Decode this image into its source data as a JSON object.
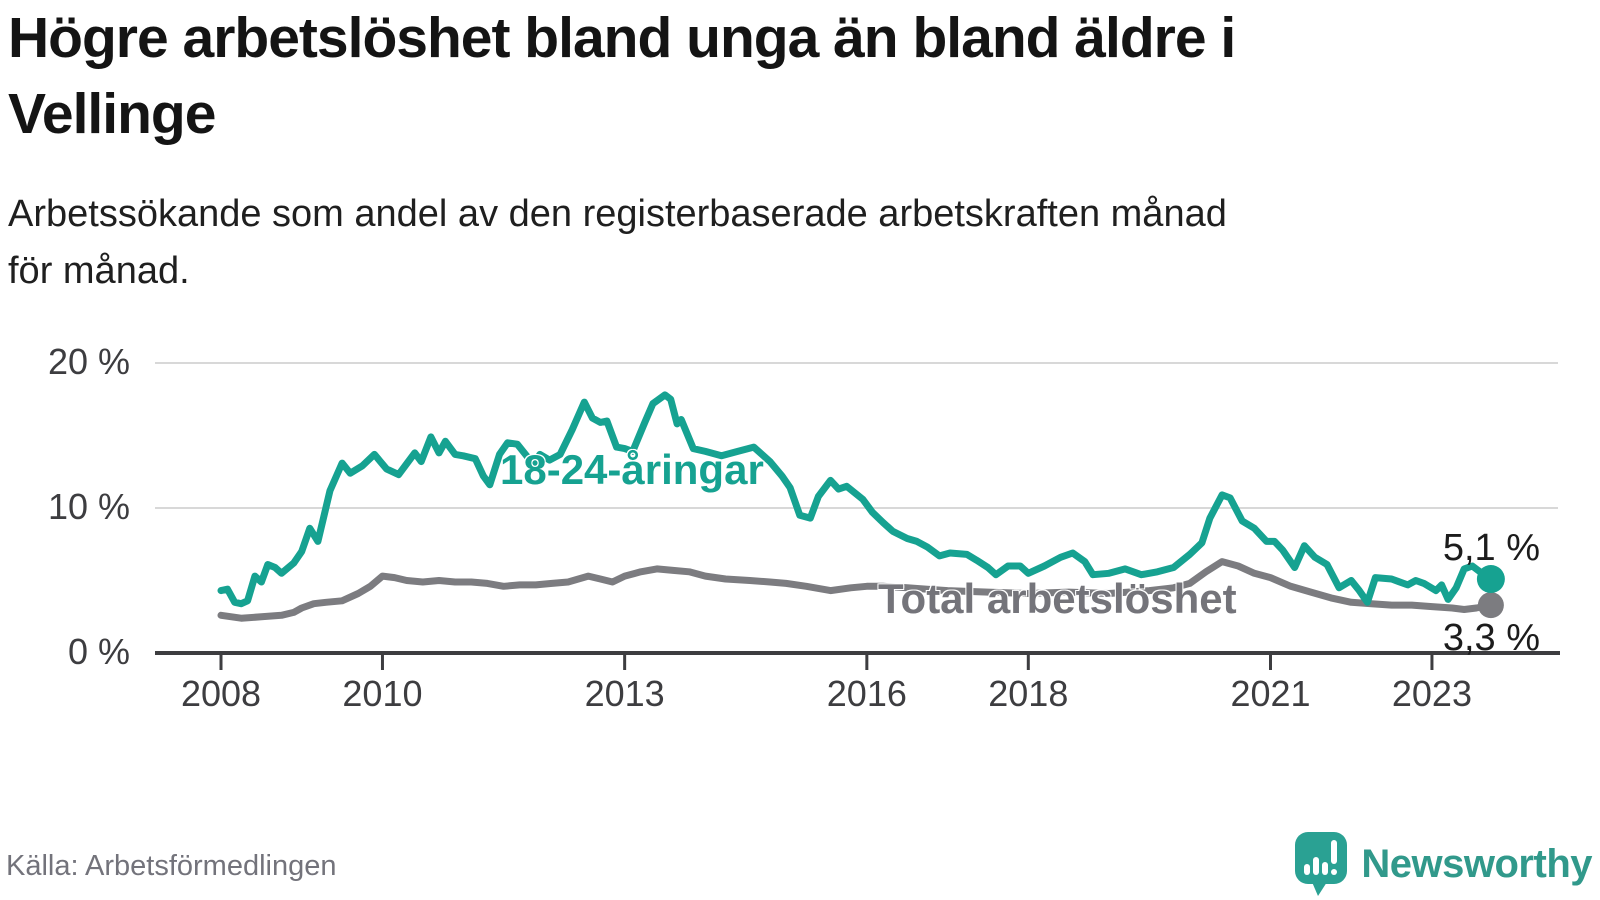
{
  "header": {
    "title_lines": [
      "Högre arbetslöshet bland unga än bland äldre i",
      "Vellinge"
    ],
    "subtitle_lines": [
      "Arbetssökande som andel av den registerbaserade arbetskraften månad",
      "för månad."
    ]
  },
  "footer": {
    "source": "Källa: Arbetsförmedlingen",
    "brand": "Newsworthy",
    "brand_icon": "newsworthy-speech-bubble-bar-chart-icon"
  },
  "colors": {
    "youth": "#16a291",
    "total": "#7c7c80",
    "grid": "#d8d8d8",
    "axis": "#3d3d40",
    "tick_text": "#3d3d40",
    "value_text": "#1c1c1c",
    "brand": "#31998b"
  },
  "chart_data": {
    "type": "line",
    "unit": "%",
    "legend": "inline-labels",
    "x_axis": {
      "ticks": [
        2008,
        2010,
        2013,
        2016,
        2018,
        2021,
        2023
      ],
      "domain": [
        2008.0,
        2023.75
      ]
    },
    "y_axis": {
      "min": 0,
      "max": 20,
      "grid": true,
      "ticks": [
        {
          "value": 20,
          "label": "20 %"
        },
        {
          "value": 10,
          "label": "10 %"
        },
        {
          "value": 0,
          "label": "0 %"
        }
      ]
    },
    "series": [
      {
        "id": "youth",
        "name": "18-24-åringar",
        "color": "#16a291",
        "end_label": "5,1 %",
        "end_value": 5.1,
        "dot_radius": 14,
        "points": [
          [
            2008.0,
            4.3
          ],
          [
            2008.08,
            4.4
          ],
          [
            2008.17,
            3.5
          ],
          [
            2008.25,
            3.4
          ],
          [
            2008.33,
            3.6
          ],
          [
            2008.42,
            5.3
          ],
          [
            2008.5,
            4.9
          ],
          [
            2008.58,
            6.1
          ],
          [
            2008.67,
            5.9
          ],
          [
            2008.75,
            5.5
          ],
          [
            2008.9,
            6.2
          ],
          [
            2009.0,
            7.0
          ],
          [
            2009.1,
            8.6
          ],
          [
            2009.2,
            7.7
          ],
          [
            2009.35,
            11.2
          ],
          [
            2009.5,
            13.1
          ],
          [
            2009.6,
            12.4
          ],
          [
            2009.75,
            12.9
          ],
          [
            2009.9,
            13.7
          ],
          [
            2010.05,
            12.7
          ],
          [
            2010.2,
            12.3
          ],
          [
            2010.4,
            13.8
          ],
          [
            2010.48,
            13.2
          ],
          [
            2010.6,
            14.9
          ],
          [
            2010.7,
            13.8
          ],
          [
            2010.78,
            14.6
          ],
          [
            2010.9,
            13.7
          ],
          [
            2011.0,
            13.6
          ],
          [
            2011.15,
            13.4
          ],
          [
            2011.25,
            12.2
          ],
          [
            2011.33,
            11.6
          ],
          [
            2011.45,
            13.7
          ],
          [
            2011.55,
            14.5
          ],
          [
            2011.67,
            14.4
          ],
          [
            2011.8,
            13.5
          ],
          [
            2011.87,
            12.9
          ],
          [
            2011.95,
            13.7
          ],
          [
            2012.07,
            13.3
          ],
          [
            2012.2,
            13.7
          ],
          [
            2012.35,
            15.4
          ],
          [
            2012.5,
            17.3
          ],
          [
            2012.6,
            16.2
          ],
          [
            2012.7,
            15.9
          ],
          [
            2012.78,
            16.0
          ],
          [
            2012.9,
            14.2
          ],
          [
            2013.0,
            14.1
          ],
          [
            2013.1,
            13.9
          ],
          [
            2013.25,
            15.9
          ],
          [
            2013.35,
            17.2
          ],
          [
            2013.5,
            17.8
          ],
          [
            2013.57,
            17.5
          ],
          [
            2013.65,
            15.8
          ],
          [
            2013.7,
            16.1
          ],
          [
            2013.85,
            14.1
          ],
          [
            2014.0,
            13.9
          ],
          [
            2014.2,
            13.6
          ],
          [
            2014.4,
            13.9
          ],
          [
            2014.6,
            14.2
          ],
          [
            2014.8,
            13.2
          ],
          [
            2014.95,
            12.2
          ],
          [
            2015.05,
            11.4
          ],
          [
            2015.17,
            9.5
          ],
          [
            2015.3,
            9.3
          ],
          [
            2015.4,
            10.8
          ],
          [
            2015.55,
            11.9
          ],
          [
            2015.65,
            11.3
          ],
          [
            2015.75,
            11.5
          ],
          [
            2015.95,
            10.6
          ],
          [
            2016.07,
            9.7
          ],
          [
            2016.2,
            9.0
          ],
          [
            2016.32,
            8.4
          ],
          [
            2016.5,
            7.9
          ],
          [
            2016.62,
            7.7
          ],
          [
            2016.75,
            7.3
          ],
          [
            2016.9,
            6.7
          ],
          [
            2017.03,
            6.9
          ],
          [
            2017.24,
            6.8
          ],
          [
            2017.36,
            6.4
          ],
          [
            2017.5,
            5.9
          ],
          [
            2017.6,
            5.4
          ],
          [
            2017.75,
            6.0
          ],
          [
            2017.9,
            6.0
          ],
          [
            2018.0,
            5.5
          ],
          [
            2018.2,
            6.0
          ],
          [
            2018.4,
            6.6
          ],
          [
            2018.55,
            6.9
          ],
          [
            2018.7,
            6.3
          ],
          [
            2018.8,
            5.4
          ],
          [
            2019.0,
            5.5
          ],
          [
            2019.2,
            5.8
          ],
          [
            2019.4,
            5.4
          ],
          [
            2019.6,
            5.6
          ],
          [
            2019.8,
            5.9
          ],
          [
            2020.0,
            6.8
          ],
          [
            2020.15,
            7.6
          ],
          [
            2020.25,
            9.3
          ],
          [
            2020.4,
            10.9
          ],
          [
            2020.5,
            10.7
          ],
          [
            2020.65,
            9.1
          ],
          [
            2020.8,
            8.6
          ],
          [
            2020.95,
            7.7
          ],
          [
            2021.05,
            7.7
          ],
          [
            2021.15,
            7.1
          ],
          [
            2021.3,
            5.9
          ],
          [
            2021.42,
            7.4
          ],
          [
            2021.55,
            6.6
          ],
          [
            2021.7,
            6.1
          ],
          [
            2021.85,
            4.5
          ],
          [
            2022.0,
            5.0
          ],
          [
            2022.1,
            4.3
          ],
          [
            2022.2,
            3.5
          ],
          [
            2022.3,
            5.2
          ],
          [
            2022.5,
            5.1
          ],
          [
            2022.7,
            4.7
          ],
          [
            2022.8,
            5.0
          ],
          [
            2022.9,
            4.8
          ],
          [
            2023.05,
            4.3
          ],
          [
            2023.12,
            4.7
          ],
          [
            2023.2,
            3.7
          ],
          [
            2023.3,
            4.5
          ],
          [
            2023.4,
            5.8
          ],
          [
            2023.5,
            6.0
          ],
          [
            2023.62,
            5.5
          ],
          [
            2023.73,
            5.1
          ]
        ]
      },
      {
        "id": "total",
        "name": "Total arbetslöshet",
        "color": "#7c7c80",
        "label_color": "#74747a",
        "end_label": "3,3 %",
        "end_value": 3.3,
        "dot_radius": 13,
        "points": [
          [
            2008.0,
            2.6
          ],
          [
            2008.25,
            2.4
          ],
          [
            2008.5,
            2.5
          ],
          [
            2008.75,
            2.6
          ],
          [
            2008.9,
            2.8
          ],
          [
            2009.0,
            3.1
          ],
          [
            2009.15,
            3.4
          ],
          [
            2009.3,
            3.5
          ],
          [
            2009.5,
            3.6
          ],
          [
            2009.7,
            4.1
          ],
          [
            2009.85,
            4.6
          ],
          [
            2010.0,
            5.3
          ],
          [
            2010.15,
            5.2
          ],
          [
            2010.3,
            5.0
          ],
          [
            2010.5,
            4.9
          ],
          [
            2010.7,
            5.0
          ],
          [
            2010.9,
            4.9
          ],
          [
            2011.1,
            4.9
          ],
          [
            2011.3,
            4.8
          ],
          [
            2011.5,
            4.6
          ],
          [
            2011.7,
            4.7
          ],
          [
            2011.9,
            4.7
          ],
          [
            2012.1,
            4.8
          ],
          [
            2012.3,
            4.9
          ],
          [
            2012.55,
            5.3
          ],
          [
            2012.7,
            5.1
          ],
          [
            2012.85,
            4.9
          ],
          [
            2013.0,
            5.3
          ],
          [
            2013.2,
            5.6
          ],
          [
            2013.4,
            5.8
          ],
          [
            2013.6,
            5.7
          ],
          [
            2013.8,
            5.6
          ],
          [
            2014.0,
            5.3
          ],
          [
            2014.25,
            5.1
          ],
          [
            2014.55,
            5.0
          ],
          [
            2014.8,
            4.9
          ],
          [
            2015.0,
            4.8
          ],
          [
            2015.25,
            4.6
          ],
          [
            2015.55,
            4.3
          ],
          [
            2015.8,
            4.5
          ],
          [
            2016.0,
            4.6
          ],
          [
            2016.2,
            4.6
          ],
          [
            2016.5,
            4.5
          ],
          [
            2016.75,
            4.4
          ],
          [
            2017.0,
            4.3
          ],
          [
            2017.5,
            4.2
          ],
          [
            2018.0,
            4.1
          ],
          [
            2018.5,
            4.2
          ],
          [
            2019.0,
            4.1
          ],
          [
            2019.5,
            4.3
          ],
          [
            2019.8,
            4.5
          ],
          [
            2020.0,
            4.8
          ],
          [
            2020.2,
            5.6
          ],
          [
            2020.4,
            6.3
          ],
          [
            2020.6,
            6.0
          ],
          [
            2020.8,
            5.5
          ],
          [
            2021.0,
            5.2
          ],
          [
            2021.25,
            4.6
          ],
          [
            2021.5,
            4.2
          ],
          [
            2021.75,
            3.8
          ],
          [
            2022.0,
            3.5
          ],
          [
            2022.25,
            3.4
          ],
          [
            2022.5,
            3.3
          ],
          [
            2022.75,
            3.3
          ],
          [
            2023.0,
            3.2
          ],
          [
            2023.25,
            3.1
          ],
          [
            2023.4,
            3.0
          ],
          [
            2023.55,
            3.1
          ],
          [
            2023.73,
            3.3
          ]
        ]
      }
    ]
  }
}
